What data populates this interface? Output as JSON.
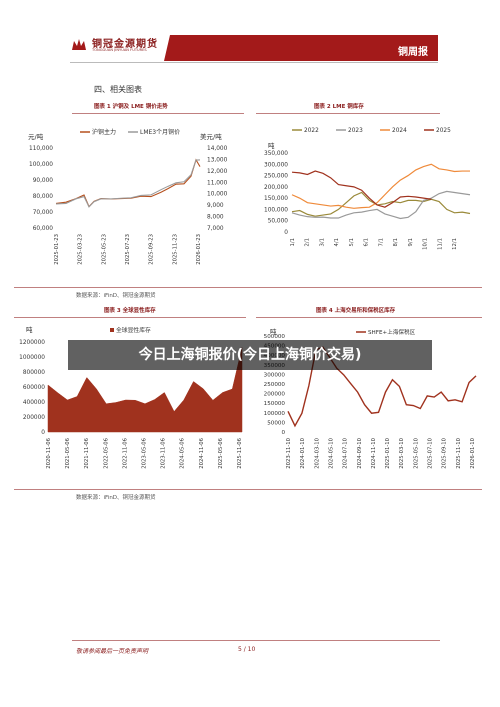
{
  "header": {
    "brand_name": "铜冠金源期货",
    "brand_sub": "TONGGUAN JINYUAN FUTURES",
    "report_title": "铜周报"
  },
  "section_title": "四、相关图表",
  "figures": [
    {
      "title": "图表 1  沪铜及 LME 铜价走势",
      "source": "数据来源：iFinD、铜冠金源期货"
    },
    {
      "title": "图表 2  LME 铜库存",
      "source": ""
    },
    {
      "title": "图表 3  全球显性库存",
      "source": "数据来源：iFinD、铜冠金源期货"
    },
    {
      "title": "图表 4  上海交易所和保税区库存",
      "source": ""
    }
  ],
  "overlay_text": "今日上海铜报价(今日上海铜价交易)",
  "footer": {
    "note": "敬请参阅最后一页免责声明",
    "page": "5 / 10"
  },
  "chart_data": [
    {
      "type": "line",
      "x_ticks": [
        "2025-01-23",
        "2025-03-23",
        "2025-05-23",
        "2025-07-23",
        "2025-09-23",
        "2025-11-23",
        "2026-01-23"
      ],
      "ylabel_left": "元/吨",
      "ylabel_right": "美元/吨",
      "y_left_ticks": [
        "60,000",
        "70,000",
        "80,000",
        "90,000",
        "100,000",
        "110,000"
      ],
      "y_right_ticks": [
        "7,000",
        "8,000",
        "9,000",
        "10,000",
        "11,000",
        "12,000",
        "13,000",
        "14,000"
      ],
      "ylim_left": [
        60000,
        110000
      ],
      "ylim_right": [
        7000,
        14000
      ],
      "series": [
        {
          "name": "沪铜主力",
          "axis": "left",
          "color": "#b5501e",
          "x": [
            0,
            10,
            20,
            28,
            33,
            38,
            45,
            55,
            65,
            75,
            85,
            95,
            105,
            112,
            120,
            128,
            135,
            140,
            144
          ],
          "y": [
            75000,
            76500,
            78000,
            81000,
            73000,
            77000,
            78000,
            78500,
            78000,
            79000,
            79500,
            80000,
            82000,
            85000,
            87000,
            88000,
            92000,
            103000,
            98000
          ]
        },
        {
          "name": "LME3个月铜价",
          "axis": "right",
          "color": "#9a9a9a",
          "x": [
            0,
            10,
            20,
            28,
            33,
            38,
            45,
            55,
            65,
            75,
            85,
            95,
            105,
            112,
            120,
            128,
            135,
            140,
            144
          ],
          "y": [
            9050,
            9200,
            9500,
            9800,
            8800,
            9350,
            9500,
            9600,
            9550,
            9700,
            9800,
            9950,
            10300,
            10700,
            10900,
            11100,
            11600,
            13000,
            12900
          ]
        }
      ]
    },
    {
      "type": "line",
      "ylabel": "吨",
      "x_ticks": [
        "1/1",
        "2/1",
        "3/1",
        "4/1",
        "5/1",
        "6/1",
        "7/1",
        "8/1",
        "9/1",
        "10/1",
        "11/1",
        "12/1"
      ],
      "y_ticks": [
        "0",
        "50,000",
        "100,000",
        "150,000",
        "200,000",
        "250,000",
        "300,000",
        "350,000"
      ],
      "ylim": [
        0,
        350000
      ],
      "legend": "top",
      "series": [
        {
          "name": "2022",
          "color": "#9a8a3a",
          "x": [
            0,
            0.5,
            1,
            1.5,
            2,
            2.5,
            3,
            3.5,
            4,
            4.5,
            5,
            5.5,
            6,
            6.5,
            7,
            7.5,
            8,
            8.5,
            9,
            9.5,
            10,
            10.5,
            11,
            11.5
          ],
          "y": [
            90000,
            95000,
            78000,
            70000,
            75000,
            80000,
            100000,
            130000,
            160000,
            175000,
            140000,
            120000,
            125000,
            135000,
            130000,
            140000,
            140000,
            135000,
            145000,
            135000,
            100000,
            85000,
            88000,
            82000
          ]
        },
        {
          "name": "2023",
          "color": "#9a9a9a",
          "x": [
            0,
            0.5,
            1,
            1.5,
            2,
            2.5,
            3,
            3.5,
            4,
            4.5,
            5,
            5.5,
            6,
            6.5,
            7,
            7.5,
            8,
            8.5,
            9,
            9.5,
            10,
            10.5,
            11,
            11.5
          ],
          "y": [
            85000,
            75000,
            68000,
            65000,
            66000,
            62000,
            62000,
            75000,
            85000,
            88000,
            95000,
            100000,
            80000,
            70000,
            60000,
            65000,
            90000,
            140000,
            150000,
            170000,
            180000,
            175000,
            170000,
            165000
          ]
        },
        {
          "name": "2024",
          "color": "#ef8a3a",
          "x": [
            0,
            0.5,
            1,
            1.5,
            2,
            2.5,
            3,
            3.5,
            4,
            4.5,
            5,
            5.5,
            6,
            6.5,
            7,
            7.5,
            8,
            8.5,
            9,
            9.5,
            10,
            10.5,
            11,
            11.5
          ],
          "y": [
            165000,
            150000,
            130000,
            125000,
            120000,
            115000,
            118000,
            110000,
            105000,
            108000,
            110000,
            130000,
            165000,
            200000,
            230000,
            250000,
            275000,
            290000,
            300000,
            280000,
            275000,
            268000,
            270000,
            270000
          ]
        },
        {
          "name": "2025",
          "color": "#a0321e",
          "x": [
            0,
            0.5,
            1,
            1.5,
            2,
            2.5,
            3,
            3.5,
            4,
            4.5,
            5,
            5.5,
            6,
            6.5,
            7,
            7.5,
            8,
            8.5,
            9
          ],
          "y": [
            265000,
            262000,
            255000,
            270000,
            260000,
            240000,
            210000,
            205000,
            200000,
            185000,
            150000,
            120000,
            110000,
            130000,
            155000,
            158000,
            155000,
            150000,
            145000
          ]
        }
      ]
    },
    {
      "type": "area",
      "ylabel": "吨",
      "legend_entry": "全球显性库存",
      "x_ticks": [
        "2020-11-06",
        "2021-05-06",
        "2021-11-06",
        "2022-05-06",
        "2022-11-06",
        "2023-05-06",
        "2023-11-06",
        "2024-05-06",
        "2024-11-06",
        "2025-05-06",
        "2025-11-06"
      ],
      "y_ticks": [
        "0",
        "200000",
        "400000",
        "600000",
        "800000",
        "1000000",
        "1200000"
      ],
      "ylim": [
        0,
        1200000
      ],
      "series": [
        {
          "name": "全球显性库存",
          "color": "#a0321e",
          "x": [
            0,
            3,
            6,
            9,
            12,
            15,
            18,
            21,
            24,
            27,
            30,
            33,
            36,
            39,
            42,
            45,
            48,
            51,
            54,
            57,
            60
          ],
          "y": [
            600000,
            550000,
            400000,
            500000,
            700000,
            600000,
            350000,
            420000,
            400000,
            450000,
            350000,
            460000,
            500000,
            300000,
            400000,
            700000,
            550000,
            450000,
            500000,
            600000,
            1100000
          ]
        }
      ]
    },
    {
      "type": "line",
      "ylabel": "吨",
      "legend_entry": "SHFE+上海保税区",
      "x_ticks": [
        "2023-11-10",
        "2024-01-10",
        "2024-03-10",
        "2024-05-10",
        "2024-07-10",
        "2024-09-10",
        "2024-11-10",
        "2025-01-10",
        "2025-03-10",
        "2025-05-10",
        "2025-07-10",
        "2025-09-10",
        "2025-11-10",
        "2026-01-10"
      ],
      "y_ticks": [
        "0",
        "50000",
        "100000",
        "150000",
        "200000",
        "250000",
        "300000",
        "350000",
        "400000",
        "450000",
        "500000"
      ],
      "ylim": [
        0,
        500000
      ],
      "series": [
        {
          "name": "SHFE+上海保税区",
          "color": "#a0321e",
          "x": [
            0,
            1,
            2,
            3,
            4,
            5,
            6,
            7,
            8,
            9,
            10,
            11,
            12,
            13,
            14,
            15,
            16,
            17,
            18,
            19,
            20,
            21,
            22,
            23,
            24,
            25,
            26,
            27
          ],
          "y": [
            100000,
            40000,
            90000,
            250000,
            420000,
            450000,
            380000,
            340000,
            290000,
            260000,
            200000,
            150000,
            90000,
            110000,
            200000,
            280000,
            230000,
            150000,
            130000,
            130000,
            180000,
            190000,
            200000,
            170000,
            160000,
            165000,
            250000,
            300000
          ]
        }
      ]
    }
  ]
}
